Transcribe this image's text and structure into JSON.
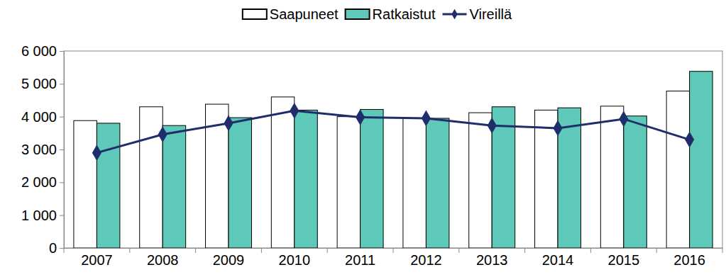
{
  "chart_data": {
    "type": "bar",
    "categories": [
      "2007",
      "2008",
      "2009",
      "2010",
      "2011",
      "2012",
      "2013",
      "2014",
      "2015",
      "2016"
    ],
    "series": [
      {
        "name": "Saapuneet",
        "type": "bar",
        "color": "#ffffff",
        "values": [
          3880,
          4300,
          4380,
          4600,
          4000,
          3950,
          4120,
          4200,
          4320,
          4780
        ]
      },
      {
        "name": "Ratkaistut",
        "type": "bar",
        "color": "#5ec9b9",
        "values": [
          3800,
          3730,
          3970,
          4200,
          4220,
          3950,
          4300,
          4270,
          4020,
          5380
        ]
      },
      {
        "name": "Vireillä",
        "type": "line",
        "color": "#1f2d6b",
        "marker": "diamond",
        "values": [
          2900,
          3460,
          3800,
          4180,
          3980,
          3950,
          3730,
          3650,
          3930,
          3300
        ]
      }
    ],
    "ylim": [
      0,
      6000
    ],
    "yticks": [
      0,
      {
        "value": 1000,
        "label": "1 000"
      },
      {
        "value": 2000,
        "label": "2 000"
      },
      {
        "value": 3000,
        "label": "3 000"
      },
      {
        "value": 4000,
        "label": "4 000"
      },
      {
        "value": 5000,
        "label": "5 000"
      },
      {
        "value": 6000,
        "label": "6 000"
      }
    ],
    "grid": false,
    "legend": "top"
  }
}
